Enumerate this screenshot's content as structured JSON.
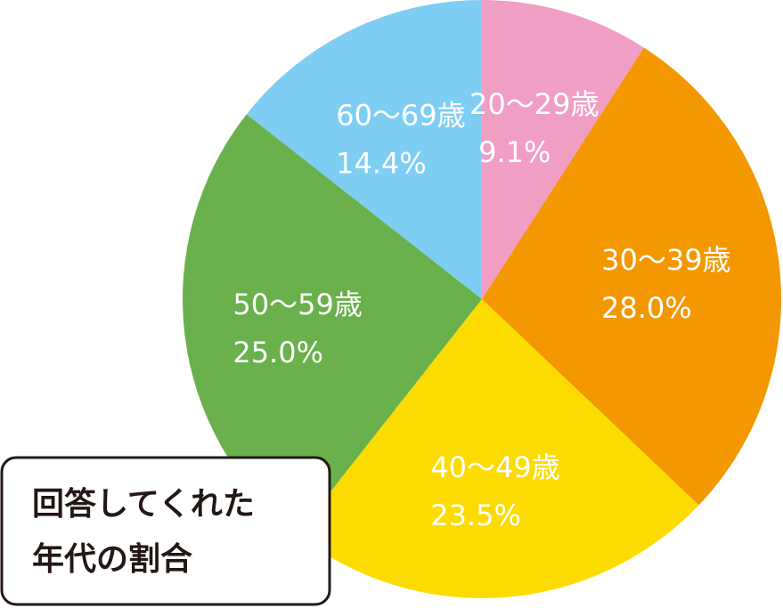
{
  "chart_data": {
    "type": "pie",
    "title": [
      "回答してくれた",
      "年代の割合"
    ],
    "categories": [
      "20～29歳",
      "30～39歳",
      "40～49歳",
      "50～59歳",
      "60～69歳"
    ],
    "values": [
      9.1,
      28.0,
      23.5,
      25.0,
      14.4
    ],
    "value_labels": [
      "9.1%",
      "28.0%",
      "23.5%",
      "25.0%",
      "14.4%"
    ],
    "colors": [
      "#f09ec4",
      "#f39800",
      "#fcdc00",
      "#6ab04c",
      "#7ecef4"
    ]
  }
}
